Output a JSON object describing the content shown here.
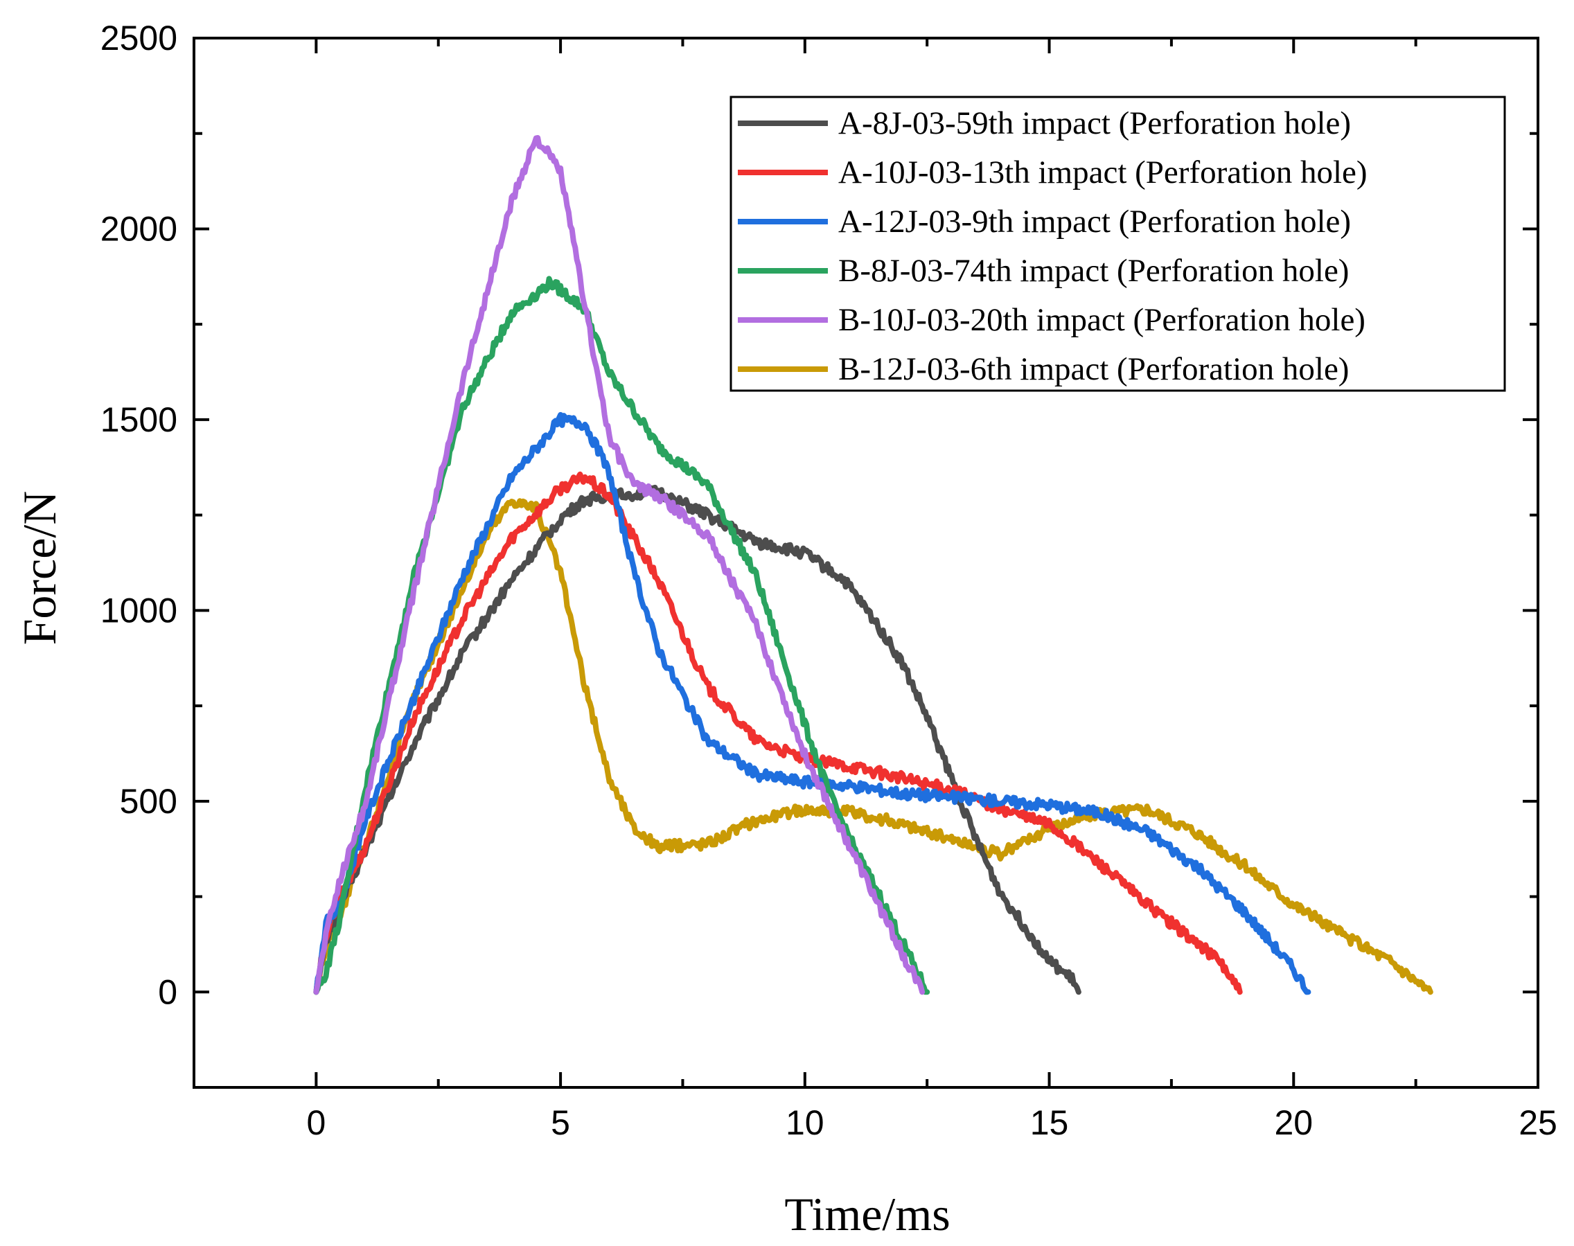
{
  "chart_data": {
    "type": "line",
    "title": "",
    "xlabel": "Time/ms",
    "ylabel": "Force/N",
    "xlim": [
      -2.5,
      25
    ],
    "ylim": [
      -250,
      2500
    ],
    "xticks": [
      0,
      5,
      10,
      15,
      20,
      25
    ],
    "yticks": [
      0,
      500,
      1000,
      1500,
      2000,
      2500
    ],
    "grid": false,
    "legend_position": "top-right",
    "series": [
      {
        "name": "A-8J-03-59th impact (Perforation hole)",
        "color": "#4d4d4d",
        "x": [
          0,
          0.2,
          0.5,
          1,
          2,
          3,
          4,
          5,
          5.5,
          6,
          7,
          8,
          9,
          10,
          10.8,
          11.5,
          12,
          12.5,
          13,
          13.5,
          14,
          14.5,
          15,
          15.5,
          15.6
        ],
        "y": [
          0,
          130,
          230,
          370,
          650,
          890,
          1080,
          1240,
          1290,
          1300,
          1310,
          1250,
          1180,
          1150,
          1080,
          960,
          860,
          720,
          560,
          400,
          260,
          170,
          80,
          30,
          0
        ]
      },
      {
        "name": "A-10J-03-13th impact (Perforation hole)",
        "color": "#f0312f",
        "x": [
          0,
          0.2,
          0.5,
          1,
          2,
          3,
          4,
          5,
          5.5,
          6,
          7,
          8,
          9,
          10,
          11,
          12,
          13,
          14,
          15,
          16,
          17,
          18,
          18.5,
          18.9
        ],
        "y": [
          0,
          150,
          250,
          380,
          720,
          980,
          1190,
          1320,
          1350,
          1300,
          1080,
          800,
          660,
          610,
          590,
          560,
          530,
          480,
          440,
          340,
          230,
          130,
          80,
          0
        ]
      },
      {
        "name": "A-12J-03-9th impact (Perforation hole)",
        "color": "#1f6fde",
        "x": [
          0,
          0.2,
          0.5,
          1,
          2,
          3,
          4,
          5,
          5.5,
          6,
          6.5,
          7,
          8,
          9,
          10,
          11,
          12,
          13,
          14,
          15,
          16,
          17,
          18,
          19,
          20,
          20.3
        ],
        "y": [
          0,
          180,
          230,
          450,
          770,
          1090,
          1350,
          1500,
          1490,
          1360,
          1100,
          900,
          660,
          570,
          550,
          540,
          520,
          510,
          500,
          490,
          470,
          420,
          330,
          210,
          60,
          0
        ]
      },
      {
        "name": "B-8J-03-74th impact (Perforation hole)",
        "color": "#2aa35f",
        "x": [
          0,
          0.2,
          0.5,
          1,
          2,
          3,
          4,
          4.8,
          5.5,
          6,
          7,
          8,
          9,
          10,
          10.5,
          11,
          11.5,
          12,
          12.5
        ],
        "y": [
          0,
          50,
          200,
          530,
          1090,
          1530,
          1780,
          1860,
          1790,
          1620,
          1430,
          1330,
          1090,
          700,
          520,
          380,
          260,
          130,
          0
        ]
      },
      {
        "name": "B-10J-03-20th impact (Perforation hole)",
        "color": "#b26ee0",
        "x": [
          0,
          0.2,
          0.5,
          1,
          2,
          3,
          4,
          4.5,
          5,
          5.5,
          6,
          6.5,
          7,
          8,
          9,
          10,
          11,
          12,
          12.4
        ],
        "y": [
          0,
          150,
          300,
          490,
          1050,
          1600,
          2070,
          2240,
          2150,
          1800,
          1450,
          1330,
          1300,
          1200,
          960,
          620,
          360,
          100,
          0
        ]
      },
      {
        "name": "B-12J-03-6th impact (Perforation hole)",
        "color": "#c99a06",
        "x": [
          0,
          0.2,
          0.5,
          1,
          2,
          3,
          3.5,
          4,
          4.5,
          5,
          5.5,
          6,
          6.5,
          7,
          8,
          9,
          10,
          11,
          12,
          13,
          14,
          15,
          16,
          17,
          18,
          19,
          20,
          21,
          22,
          22.8
        ],
        "y": [
          0,
          120,
          200,
          380,
          770,
          1060,
          1200,
          1290,
          1270,
          1100,
          800,
          560,
          430,
          380,
          390,
          450,
          480,
          470,
          440,
          400,
          360,
          430,
          470,
          480,
          420,
          330,
          230,
          150,
          80,
          0
        ]
      }
    ]
  }
}
